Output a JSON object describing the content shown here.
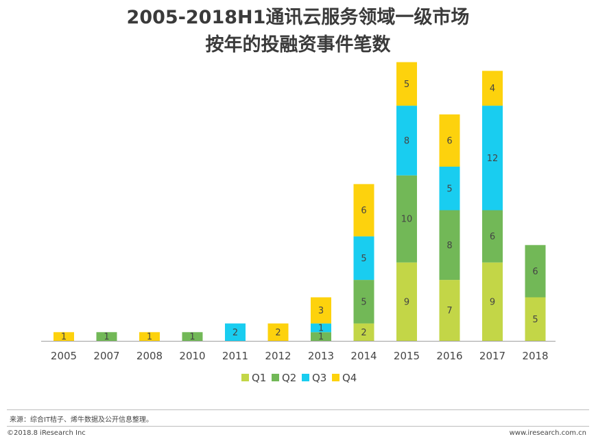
{
  "page": {
    "title_line1": "2005-2018H1通讯云服务领域一级市场",
    "title_line2": "按年的投融资事件笔数"
  },
  "footer": {
    "source": "来源：综合IT桔子、烯牛数据及公开信息整理。",
    "copyright": "©2018.8 iResearch Inc",
    "website": "www.iresearch.com.cn"
  },
  "chart_data": {
    "type": "bar",
    "stacked": true,
    "title": "2005-2018H1通讯云服务领域一级市场按年的投融资事件笔数",
    "xlabel": "",
    "ylabel": "",
    "ylim": [
      0,
      32
    ],
    "grid": false,
    "legend_position": "bottom",
    "categories": [
      "2005",
      "2007",
      "2008",
      "2010",
      "2011",
      "2012",
      "2013",
      "2014",
      "2015",
      "2016",
      "2017",
      "2018"
    ],
    "series": [
      {
        "name": "Q1",
        "color": "#c3d647",
        "values": [
          0,
          0,
          0,
          0,
          0,
          0,
          0,
          2,
          9,
          7,
          9,
          5
        ]
      },
      {
        "name": "Q2",
        "color": "#72b857",
        "values": [
          0,
          1,
          0,
          1,
          0,
          0,
          1,
          5,
          10,
          8,
          6,
          6
        ]
      },
      {
        "name": "Q3",
        "color": "#19cdf0",
        "values": [
          0,
          0,
          0,
          0,
          2,
          0,
          1,
          5,
          8,
          5,
          12,
          0
        ]
      },
      {
        "name": "Q4",
        "color": "#fdd20d",
        "values": [
          1,
          0,
          1,
          0,
          0,
          2,
          3,
          6,
          5,
          6,
          4,
          0
        ]
      }
    ]
  }
}
